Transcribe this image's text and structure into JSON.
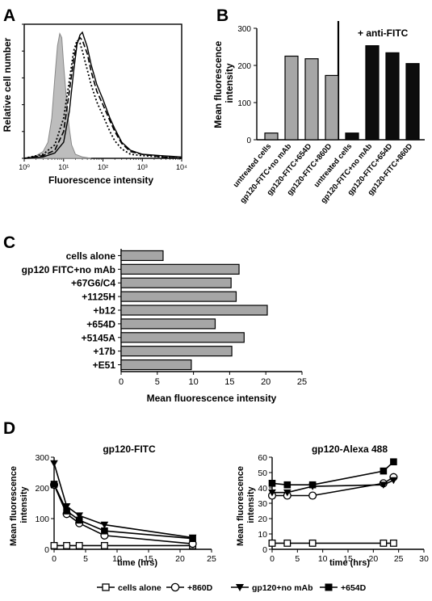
{
  "panels": {
    "A": {
      "letter": "A",
      "ylabel": "Relative cell number",
      "xlabel": "Fluorescence intensity",
      "xticks": [
        "10⁰",
        "10¹",
        "10²",
        "10³",
        "10⁴"
      ]
    },
    "B": {
      "letter": "B",
      "ylabel": [
        "Mean fluorescence",
        "intensity"
      ],
      "annotation": "+ anti-FITC"
    },
    "C": {
      "letter": "C",
      "xlabel": "Mean fluorescence intensity"
    },
    "D": {
      "letter": "D",
      "left_title": "gp120-FITC",
      "right_title": "gp120-Alexa 488",
      "left_ylabel": [
        "Mean fluorescence",
        "intensity"
      ],
      "right_ylabel": [
        "Mean fluorescence",
        "intensity"
      ],
      "left_xlabel": "time (hrs)",
      "right_xlabel": "time  (hrs)"
    }
  },
  "legend": [
    {
      "label": "cells alone",
      "marker": "open-square"
    },
    {
      "label": "+860D",
      "marker": "open-circle"
    },
    {
      "label": "gp120+no mAb",
      "marker": "filled-down-triangle"
    },
    {
      "label": "+654D",
      "marker": "filled-square"
    }
  ],
  "chart_data": [
    {
      "panel": "A",
      "type": "line",
      "xlabel": "Fluorescence intensity",
      "ylabel": "Relative cell number",
      "xscale": "log",
      "xlim": [
        1,
        10000
      ],
      "ylim": [
        0,
        100
      ],
      "yticks": [
        0,
        20,
        40,
        60,
        80,
        100
      ],
      "series": [
        {
          "style": "filled-gray",
          "x": [
            1,
            2,
            3,
            4,
            5,
            6,
            7,
            8,
            9,
            10,
            12,
            14,
            16,
            20,
            30,
            50
          ],
          "y": [
            0,
            2,
            5,
            12,
            30,
            60,
            84,
            93,
            90,
            70,
            42,
            22,
            10,
            3,
            1,
            0
          ]
        },
        {
          "style": "solid",
          "x": [
            1,
            3,
            6,
            10,
            14,
            18,
            22,
            26,
            30,
            40,
            50,
            70,
            100,
            150,
            200,
            300,
            500,
            1000,
            3000,
            10000
          ],
          "y": [
            0,
            1,
            4,
            12,
            35,
            65,
            85,
            92,
            94,
            83,
            70,
            55,
            44,
            30,
            22,
            12,
            6,
            3,
            2,
            1
          ]
        },
        {
          "style": "dashed",
          "x": [
            1,
            3,
            6,
            10,
            14,
            18,
            22,
            26,
            30,
            40,
            50,
            70,
            100,
            150,
            200,
            300,
            500,
            1000,
            3000,
            10000
          ],
          "y": [
            0,
            2,
            6,
            20,
            50,
            74,
            86,
            90,
            88,
            78,
            65,
            50,
            40,
            28,
            20,
            11,
            5,
            3,
            1,
            0
          ]
        },
        {
          "style": "dotted",
          "x": [
            1,
            3,
            6,
            10,
            14,
            18,
            22,
            26,
            30,
            40,
            50,
            70,
            100,
            150,
            200,
            300,
            500,
            1000,
            3000,
            10000
          ],
          "y": [
            0,
            3,
            10,
            30,
            58,
            80,
            88,
            86,
            80,
            66,
            55,
            42,
            32,
            20,
            13,
            7,
            3,
            2,
            1,
            0
          ]
        }
      ]
    },
    {
      "panel": "B",
      "type": "bar",
      "ylim": [
        0,
        300
      ],
      "yticks": [
        0,
        100,
        200,
        300
      ],
      "groups": [
        {
          "color": "#a6a6a6",
          "categories": [
            "untreated cells",
            "gp120-FITC+no mAb",
            "gp120-FITC+654D",
            "gp120-FITC+860D"
          ],
          "values": [
            18,
            225,
            218,
            173
          ]
        },
        {
          "color": "#0d0d0d",
          "categories": [
            "untreated cells",
            "gp120-FITC+no mAb",
            "gp120-FITC+654D",
            "gp120-FITC+860D"
          ],
          "values": [
            18,
            253,
            234,
            205
          ]
        }
      ]
    },
    {
      "panel": "C",
      "type": "bar",
      "orientation": "horizontal",
      "xlabel": "Mean fluorescence intensity",
      "xlim": [
        0,
        25
      ],
      "xticks": [
        0,
        5,
        10,
        15,
        20,
        25
      ],
      "categories": [
        "cells alone",
        "gp120 FITC+no mAb",
        "+67G6/C4",
        "+1125H",
        "+b12",
        "+654D",
        "+5145A",
        "+17b",
        "+E51"
      ],
      "values": [
        5.8,
        16.3,
        15.2,
        15.9,
        20.2,
        13.0,
        17.0,
        15.3,
        9.7
      ],
      "color": "#a6a6a6"
    },
    {
      "panel": "D-left",
      "type": "line",
      "title": "gp120-FITC",
      "xlabel": "time (hrs)",
      "xlim": [
        0,
        25
      ],
      "ylim": [
        0,
        300
      ],
      "xticks": [
        0,
        5,
        10,
        15,
        20,
        25
      ],
      "yticks": [
        0,
        100,
        200,
        300
      ],
      "x": [
        0,
        2,
        4,
        8,
        22
      ],
      "series": [
        {
          "name": "cells alone",
          "marker": "open-square",
          "values": [
            12,
            12,
            12,
            12,
            12
          ]
        },
        {
          "name": "+860D",
          "marker": "open-circle",
          "values": [
            210,
            115,
            85,
            45,
            18
          ]
        },
        {
          "name": "gp120+no mAb",
          "marker": "filled-down-triangle",
          "values": [
            280,
            140,
            110,
            80,
            38
          ]
        },
        {
          "name": "+654D",
          "marker": "filled-square",
          "values": [
            212,
            125,
            95,
            60,
            35
          ]
        }
      ]
    },
    {
      "panel": "D-right",
      "type": "line",
      "title": "gp120-Alexa 488",
      "xlabel": "time  (hrs)",
      "xlim": [
        0,
        30
      ],
      "ylim": [
        0,
        60
      ],
      "xticks": [
        0,
        5,
        10,
        15,
        20,
        25,
        30
      ],
      "yticks": [
        0,
        10,
        20,
        30,
        40,
        50,
        60
      ],
      "x": [
        0,
        3,
        8,
        22,
        24
      ],
      "series": [
        {
          "name": "cells alone",
          "marker": "open-square",
          "values": [
            4,
            4,
            4,
            4,
            4
          ]
        },
        {
          "name": "+860D",
          "marker": "open-circle",
          "values": [
            35,
            35,
            35,
            43,
            47
          ]
        },
        {
          "name": "gp120+no mAb",
          "marker": "filled-down-triangle",
          "values": [
            37,
            37,
            41,
            42,
            45
          ]
        },
        {
          "name": "+654D",
          "marker": "filled-square",
          "values": [
            43,
            42,
            42,
            51,
            57
          ]
        }
      ]
    }
  ]
}
